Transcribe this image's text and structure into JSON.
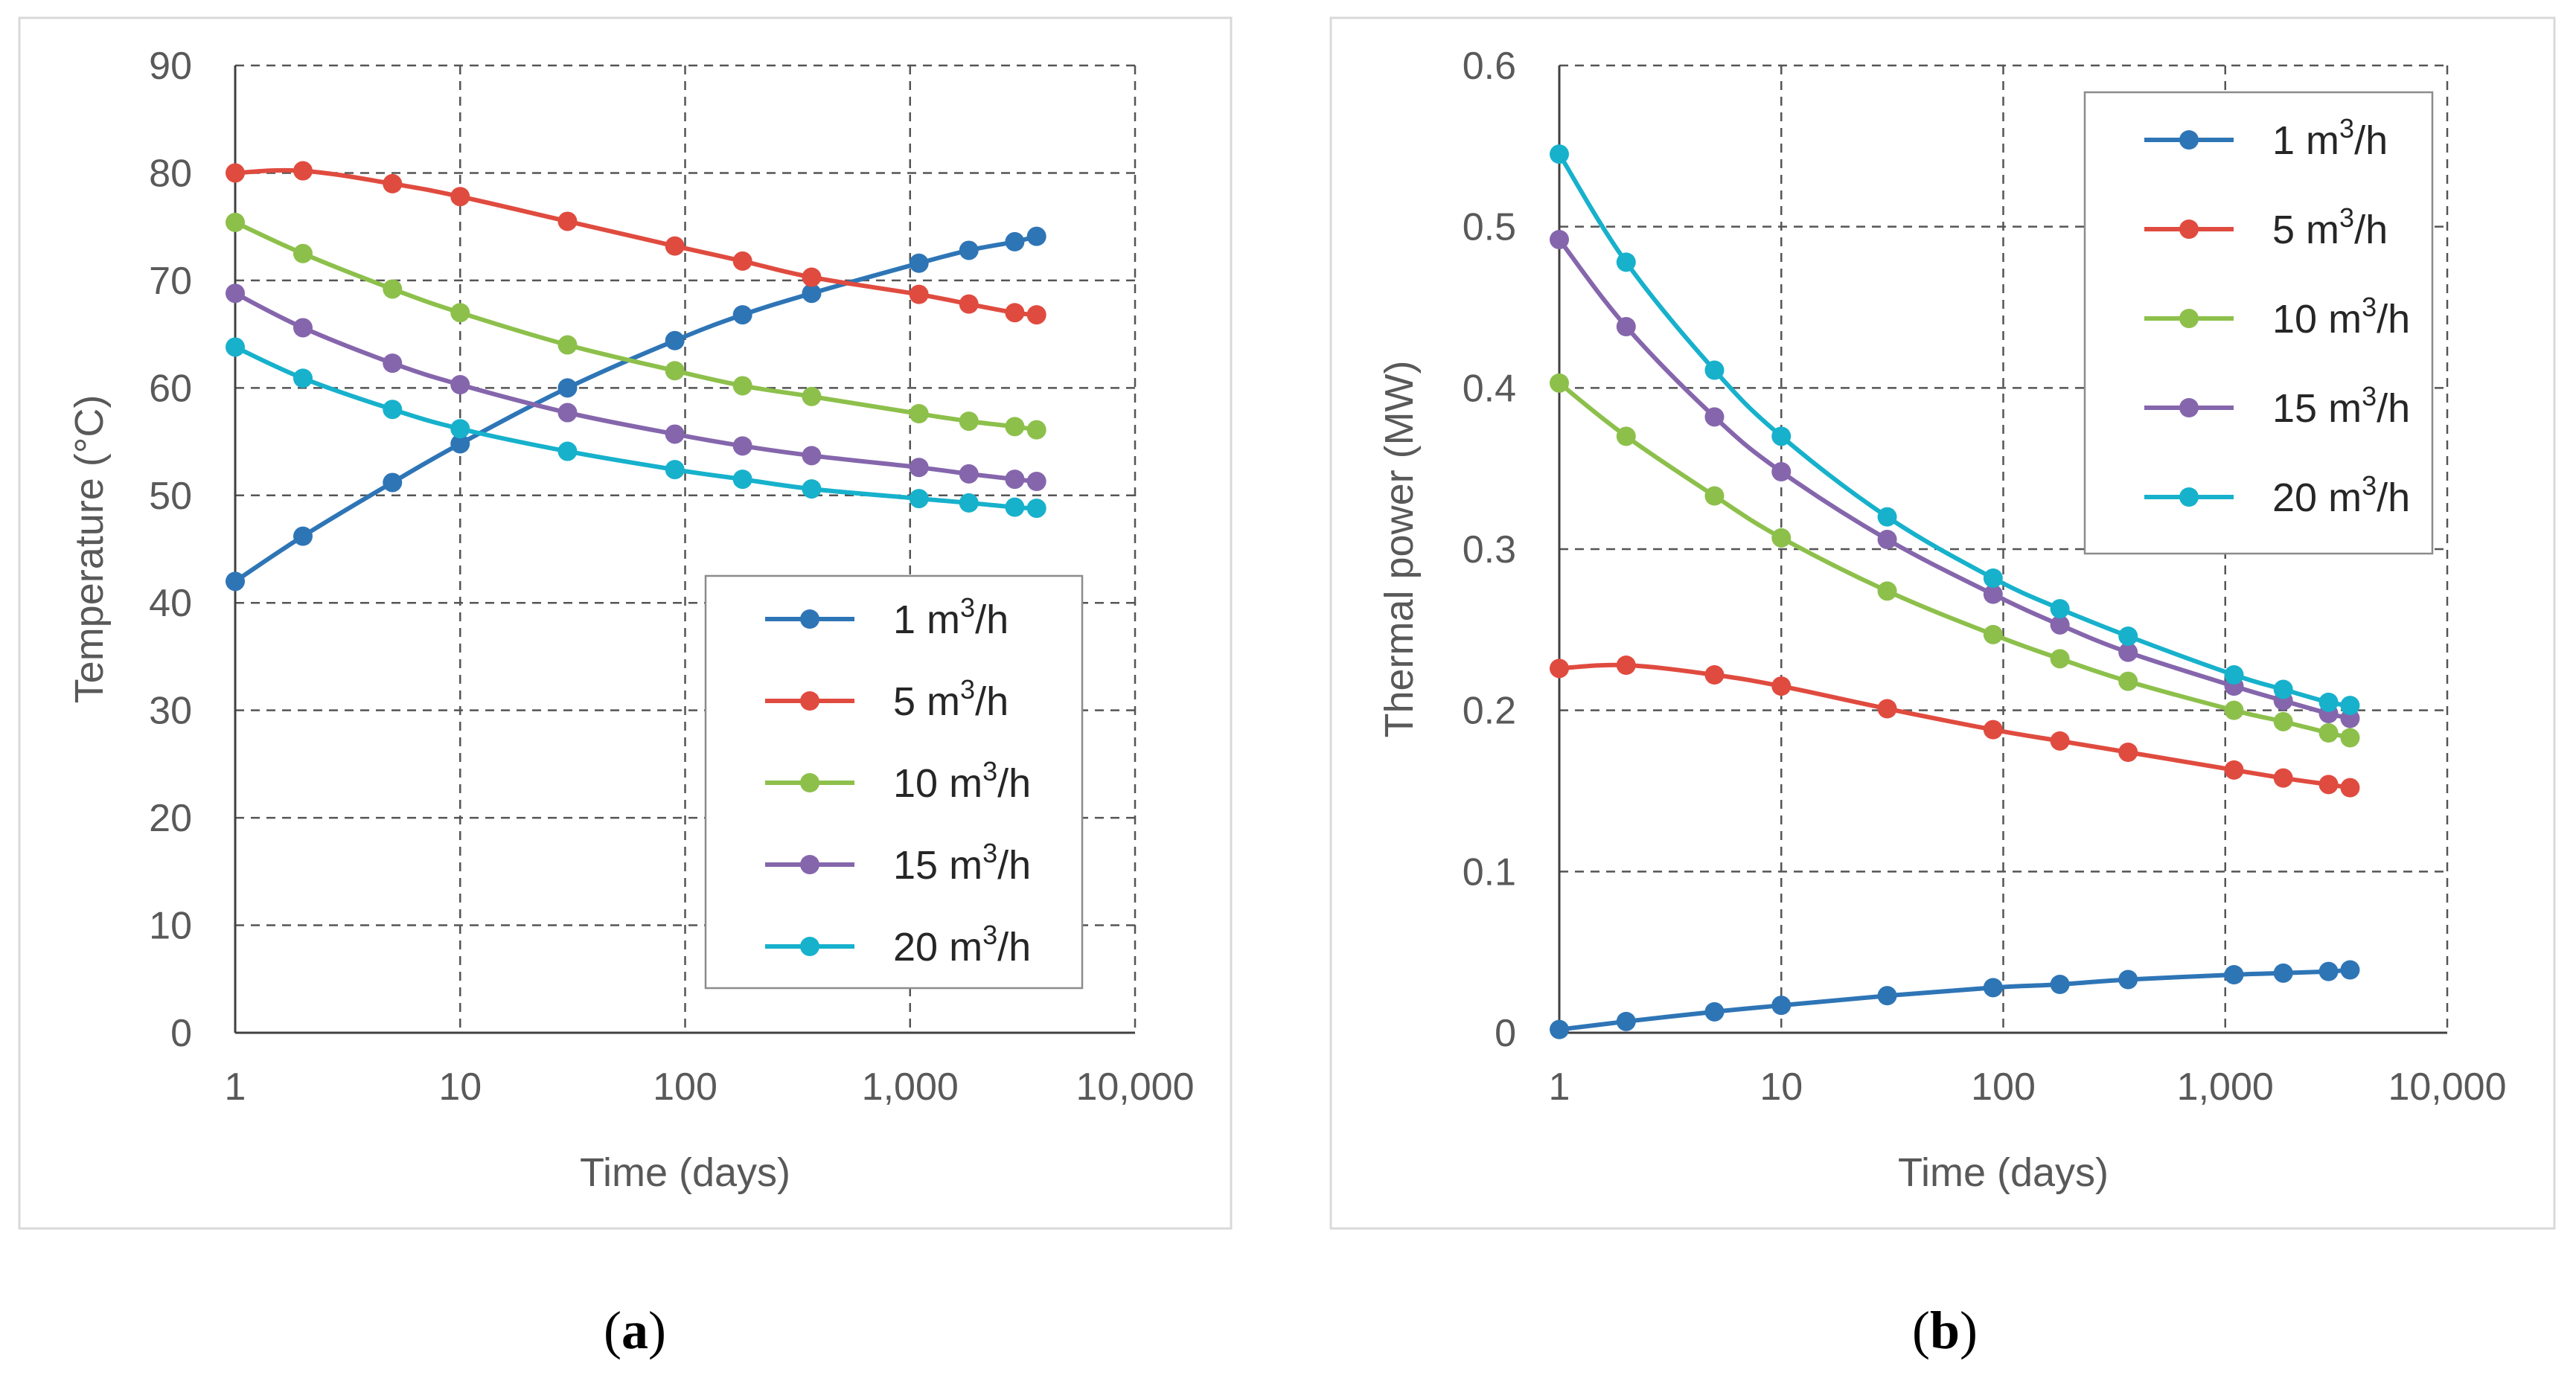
{
  "chart_data": [
    {
      "panel": "(a)",
      "type": "line",
      "xlabel": "Time (days)",
      "ylabel": "Temperature (°C)",
      "xscale": "log",
      "xlim": [
        1,
        10000
      ],
      "ylim": [
        0,
        90
      ],
      "xticks": [
        "1",
        "10",
        "100",
        "1,000",
        "10,000"
      ],
      "yticks": [
        "0",
        "10",
        "20",
        "30",
        "40",
        "50",
        "60",
        "70",
        "80",
        "90"
      ],
      "grid": true,
      "legend_position": "inside, lower-right",
      "x": [
        1,
        2,
        5,
        10,
        30,
        90,
        180,
        365,
        1095,
        1825,
        2920,
        3650
      ],
      "series": [
        {
          "name": "1 m3/h",
          "color": "#2E75B6",
          "values": [
            42,
            46.2,
            51.2,
            54.8,
            60,
            64.4,
            66.8,
            68.8,
            71.6,
            72.8,
            73.6,
            74.1
          ]
        },
        {
          "name": "5 m3/h",
          "color": "#E04B3F",
          "values": [
            80,
            80.2,
            79,
            77.8,
            75.5,
            73.2,
            71.8,
            70.3,
            68.7,
            67.8,
            67,
            66.8
          ]
        },
        {
          "name": "10 m3/h",
          "color": "#8DC04B",
          "values": [
            75.4,
            72.5,
            69.2,
            67,
            64,
            61.6,
            60.2,
            59.2,
            57.6,
            56.9,
            56.4,
            56.1
          ]
        },
        {
          "name": "15 m3/h",
          "color": "#8566AC",
          "values": [
            68.8,
            65.6,
            62.3,
            60.3,
            57.7,
            55.7,
            54.6,
            53.7,
            52.6,
            52,
            51.5,
            51.3
          ]
        },
        {
          "name": "20 m3/h",
          "color": "#17B1CC",
          "values": [
            63.8,
            60.9,
            58,
            56.2,
            54.1,
            52.4,
            51.5,
            50.6,
            49.7,
            49.3,
            48.9,
            48.8
          ]
        }
      ]
    },
    {
      "panel": "(b)",
      "type": "line",
      "xlabel": "Time (days)",
      "ylabel": "Thermal power (MW)",
      "xscale": "log",
      "xlim": [
        1,
        10000
      ],
      "ylim": [
        0,
        0.6
      ],
      "xticks": [
        "1",
        "10",
        "100",
        "1,000",
        "10,000"
      ],
      "yticks": [
        "0",
        "0.1",
        "0.2",
        "0.3",
        "0.4",
        "0.5",
        "0.6"
      ],
      "grid": true,
      "legend_position": "inside, top-right",
      "x": [
        1,
        2,
        5,
        10,
        30,
        90,
        180,
        365,
        1095,
        1825,
        2920,
        3650
      ],
      "series": [
        {
          "name": "1 m3/h",
          "color": "#2E75B6",
          "values": [
            0.002,
            0.007,
            0.013,
            0.017,
            0.023,
            0.028,
            0.03,
            0.033,
            0.036,
            0.037,
            0.038,
            0.039
          ]
        },
        {
          "name": "5 m3/h",
          "color": "#E04B3F",
          "values": [
            0.226,
            0.228,
            0.222,
            0.215,
            0.201,
            0.188,
            0.181,
            0.174,
            0.163,
            0.158,
            0.154,
            0.152
          ]
        },
        {
          "name": "10 m3/h",
          "color": "#8DC04B",
          "values": [
            0.403,
            0.37,
            0.333,
            0.307,
            0.274,
            0.247,
            0.232,
            0.218,
            0.2,
            0.193,
            0.186,
            0.183
          ]
        },
        {
          "name": "15 m3/h",
          "color": "#8566AC",
          "values": [
            0.492,
            0.438,
            0.382,
            0.348,
            0.306,
            0.272,
            0.253,
            0.236,
            0.215,
            0.206,
            0.198,
            0.195
          ]
        },
        {
          "name": "20 m3/h",
          "color": "#17B1CC",
          "values": [
            0.545,
            0.478,
            0.411,
            0.37,
            0.32,
            0.282,
            0.263,
            0.246,
            0.222,
            0.213,
            0.205,
            0.203
          ]
        }
      ]
    }
  ],
  "legend_unit": {
    "prefix": "m",
    "superscript": "3",
    "suffix": "/h"
  },
  "captions": [
    "(a)",
    "(b)"
  ]
}
